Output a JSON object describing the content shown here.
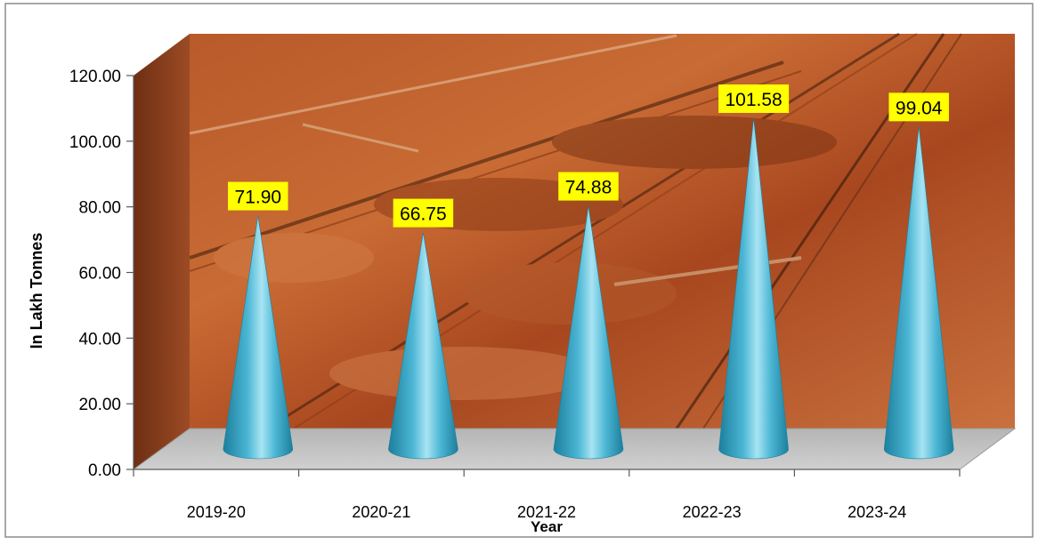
{
  "chart_data": {
    "type": "bar",
    "bar_shape": "cone",
    "perspective": "3d",
    "background": "iron ore mining photograph",
    "categories": [
      "2019-20",
      "2020-21",
      "2021-22",
      "2022-23",
      "2023-24"
    ],
    "series": [
      {
        "values": [
          71.9,
          66.75,
          74.88,
          101.58,
          99.04
        ]
      }
    ],
    "data_labels": [
      "71.90",
      "66.75",
      "74.88",
      "101.58",
      "99.04"
    ],
    "y_ticks": [
      "0.00",
      "20.00",
      "40.00",
      "60.00",
      "80.00",
      "100.00",
      "120.00"
    ],
    "ylim": [
      0,
      120
    ],
    "xlabel": "Year",
    "ylabel": "In Lakh Tonnes",
    "title": "",
    "grid": false,
    "legend": "none",
    "colors": {
      "cone": "#4bb6d4",
      "cone_dark": "#1c7f9d",
      "cone_light": "#a8e4f3",
      "label_bg": "#ffff00",
      "floor": "#c3c3c3",
      "axis": "#595959",
      "frame": "#8c8c8c"
    }
  }
}
